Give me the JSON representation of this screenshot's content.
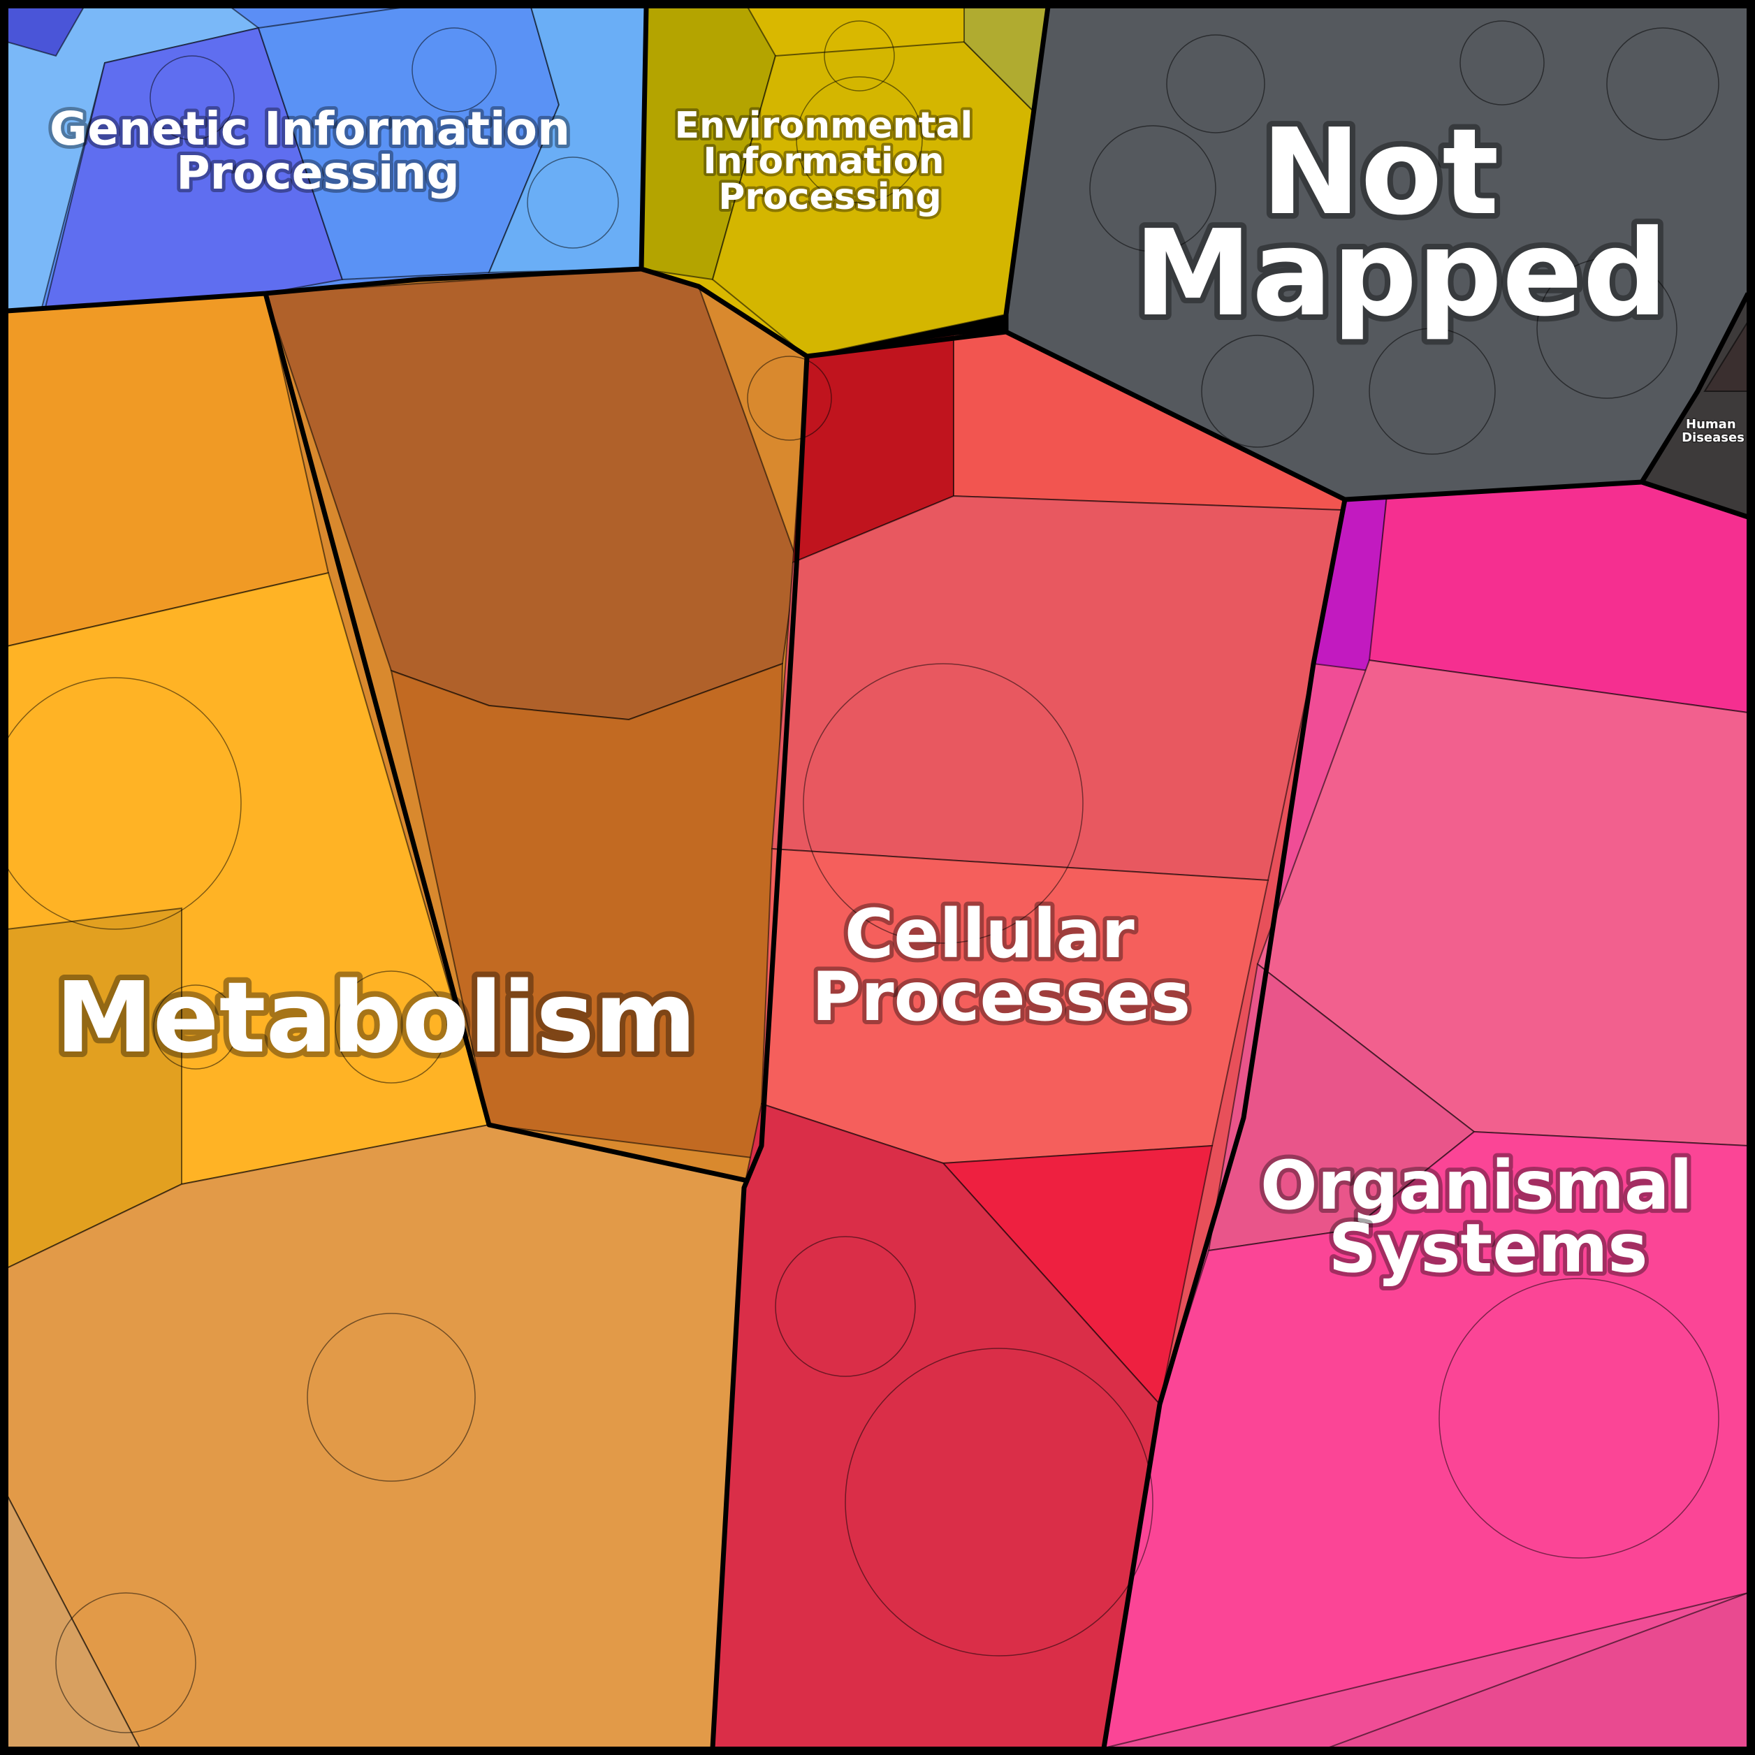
{
  "categories": [
    {
      "id": "genetic",
      "label_lines": [
        "Genetic Information",
        "Processing"
      ],
      "color": "#5b8ef5"
    },
    {
      "id": "environmental",
      "label_lines": [
        "Environmental",
        "Information",
        "Processing"
      ],
      "color": "#d9b800"
    },
    {
      "id": "not-mapped",
      "label_lines": [
        "Not",
        "Mapped"
      ],
      "color": "#55595e"
    },
    {
      "id": "human-diseases",
      "label_lines": [
        "Human",
        "Diseases"
      ],
      "color": "#3a3a3a"
    },
    {
      "id": "metabolism",
      "label_lines": [
        "Metabolism"
      ],
      "color": "#d9892e"
    },
    {
      "id": "cellular",
      "label_lines": [
        "Cellular",
        "Processes"
      ],
      "color": "#e8505a"
    },
    {
      "id": "organismal",
      "label_lines": [
        "Organismal",
        "Systems"
      ],
      "color": "#f04d96"
    }
  ]
}
